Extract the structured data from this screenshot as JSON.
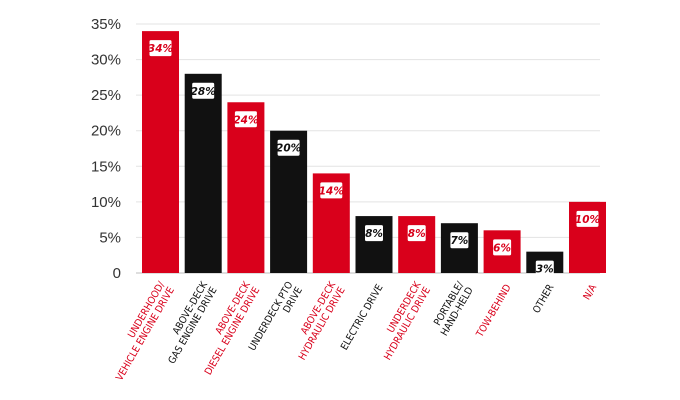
{
  "chart_data": {
    "type": "bar",
    "title": "",
    "xlabel": "",
    "ylabel": "",
    "ylim": [
      0,
      35
    ],
    "yticks": [
      "0",
      "5%",
      "10%",
      "15%",
      "20%",
      "25%",
      "30%",
      "35%"
    ],
    "grid": true,
    "legend": "none",
    "colors": {
      "red": "#d9001b",
      "black": "#111111"
    },
    "categories": [
      {
        "lines": [
          "UNDERHOOD/",
          "VEHICLE ENGINE DRIVE"
        ],
        "value": 34,
        "label": "34%",
        "color": "red"
      },
      {
        "lines": [
          "ABOVE-DECK",
          "GAS ENGINE DRIVE"
        ],
        "value": 28,
        "label": "28%",
        "color": "black"
      },
      {
        "lines": [
          "ABOVE-DECK",
          "DIESEL ENGINE DRIVE"
        ],
        "value": 24,
        "label": "24%",
        "color": "red"
      },
      {
        "lines": [
          "UNDERDECK PTO",
          "DRIVE"
        ],
        "value": 20,
        "label": "20%",
        "color": "black"
      },
      {
        "lines": [
          "ABOVE-DECK",
          "HYDRAULIC DRIVE"
        ],
        "value": 14,
        "label": "14%",
        "color": "red"
      },
      {
        "lines": [
          "ELECTRIC DRIVE"
        ],
        "value": 8,
        "label": "8%",
        "color": "black"
      },
      {
        "lines": [
          "UNDERDECK",
          "HYDRAULIC DRIVE"
        ],
        "value": 8,
        "label": "8%",
        "color": "red"
      },
      {
        "lines": [
          "PORTABLE/",
          "HAND-HELD"
        ],
        "value": 7,
        "label": "7%",
        "color": "black"
      },
      {
        "lines": [
          "TOW-BEHIND"
        ],
        "value": 6,
        "label": "6%",
        "color": "red"
      },
      {
        "lines": [
          "OTHER"
        ],
        "value": 3,
        "label": "3%",
        "color": "black"
      },
      {
        "lines": [
          "N/A"
        ],
        "value": 10,
        "label": "10%",
        "color": "red"
      }
    ]
  }
}
